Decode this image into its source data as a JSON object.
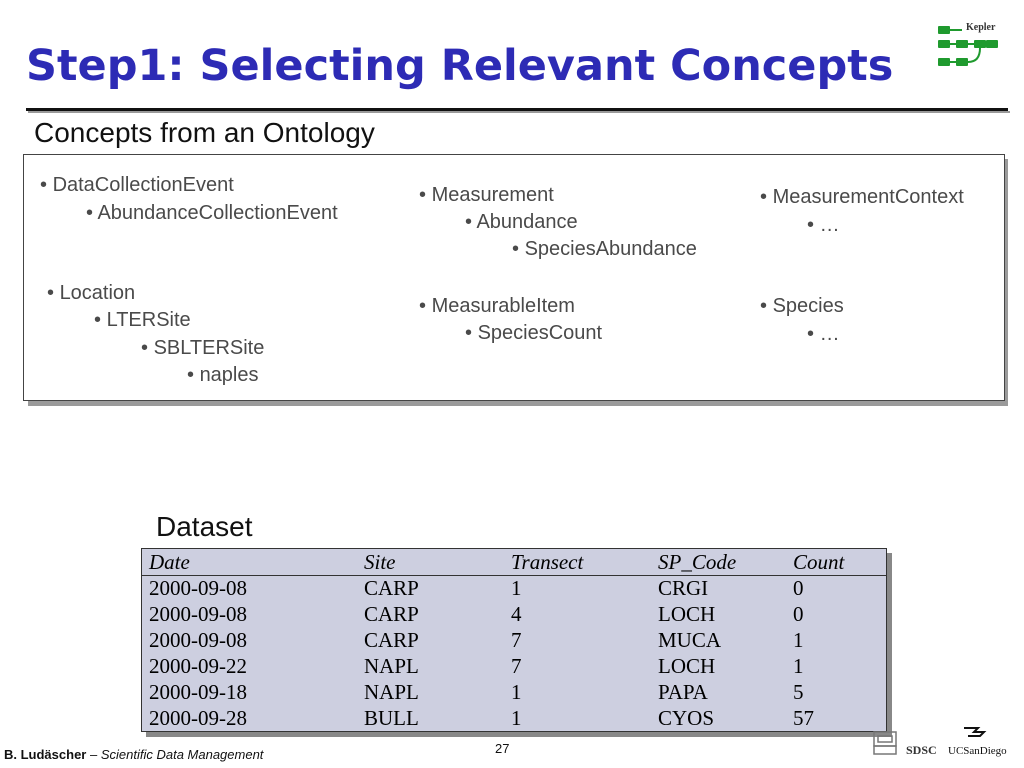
{
  "title": "Step1: Selecting Relevant Concepts",
  "logo": {
    "text": "Kepler",
    "icon": "kepler-logo-icon"
  },
  "subtitle": "Concepts from an Ontology",
  "concepts": {
    "col1": [
      "DataCollectionEvent",
      "AbundanceCollectionEvent"
    ],
    "col2": [
      "Measurement",
      "Abundance",
      "SpeciesAbundance"
    ],
    "col3": [
      "MeasurementContext",
      "…"
    ],
    "col4": [
      "Location",
      "LTERSite",
      "SBLTERSite",
      "naples"
    ],
    "col5": [
      "MeasurableItem",
      "SpeciesCount"
    ],
    "col6": [
      "Species",
      "…"
    ]
  },
  "dataset": {
    "label": "Dataset",
    "headers": [
      "Date",
      "Site",
      "Transect",
      "SP_Code",
      "Count"
    ],
    "rows": [
      [
        "2000-09-08",
        "CARP",
        "1",
        "CRGI",
        "0"
      ],
      [
        "2000-09-08",
        "CARP",
        "4",
        "LOCH",
        "0"
      ],
      [
        "2000-09-08",
        "CARP",
        "7",
        "MUCA",
        "1"
      ],
      [
        "2000-09-22",
        "NAPL",
        "7",
        "LOCH",
        "1"
      ],
      [
        "2000-09-18",
        "NAPL",
        "1",
        "PAPA",
        "5"
      ],
      [
        "2000-09-28",
        "BULL",
        "1",
        "CYOS",
        "57"
      ]
    ]
  },
  "footer": {
    "author": "B. Ludäscher",
    "separator": " – ",
    "course": "Scientific Data Management",
    "page": "27",
    "sdsc": "SDSC",
    "ucsd": "UCSanDiego"
  },
  "colors": {
    "title": "#2d2bb5",
    "table_bg": "#cdcfe0",
    "logo_green": "#1f9a2e"
  }
}
